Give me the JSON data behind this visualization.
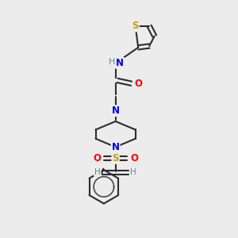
{
  "background_color": "#ececec",
  "bond_color": "#2d2d2d",
  "atom_colors": {
    "S": "#c8a000",
    "N": "#0000ee",
    "O": "#ff0000",
    "H": "#5a8a8a",
    "C": "#2d2d2d"
  },
  "figsize": [
    3.0,
    3.0
  ],
  "dpi": 100
}
